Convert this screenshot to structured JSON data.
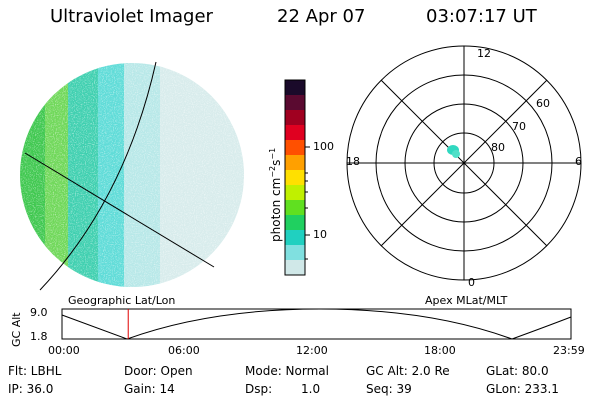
{
  "header": {
    "instrument": "Ultraviolet Imager",
    "date": "22 Apr 07",
    "time": "03:07:17 UT"
  },
  "colorbar": {
    "unit_label": "photon cm",
    "unit_exp1": "−2",
    "unit_mid": "s",
    "unit_exp2": "−1",
    "ticks": [
      "100",
      "10"
    ],
    "colors": [
      "#1a0a2a",
      "#5a0a30",
      "#a00020",
      "#e00020",
      "#ff5000",
      "#ffa000",
      "#ffe000",
      "#c0f000",
      "#60e020",
      "#20d060",
      "#20d0c0",
      "#80e0e0",
      "#d0e8e8"
    ]
  },
  "polar_plot": {
    "mlt_labels": [
      "12",
      "18",
      "6",
      "0"
    ],
    "lat_labels": [
      "60",
      "70",
      "80"
    ]
  },
  "timeline": {
    "left_label": "Geographic Lat/Lon",
    "right_label": "Apex MLat/MLT",
    "axis_title": "GC Alt",
    "y_max": "9.0",
    "y_min": "1.8",
    "x_ticks": [
      "00:00",
      "06:00",
      "12:00",
      "18:00",
      "23:59"
    ],
    "marker_time_hours": 3.12
  },
  "status": {
    "flt": "Flt: LBHL",
    "ip": "IP: 36.0",
    "door": "Door: Open",
    "gain": "Gain: 14",
    "mode": "Mode: Normal",
    "dsp_label": "Dsp:",
    "dsp_value": "1.0",
    "gc_alt": "GC Alt: 2.0 Re",
    "seq": "Seq: 39",
    "glat": "GLat: 80.0",
    "glon": "GLon: 233.1"
  },
  "colors": {
    "marker": "#e00000",
    "patch": "#30d8c0"
  }
}
